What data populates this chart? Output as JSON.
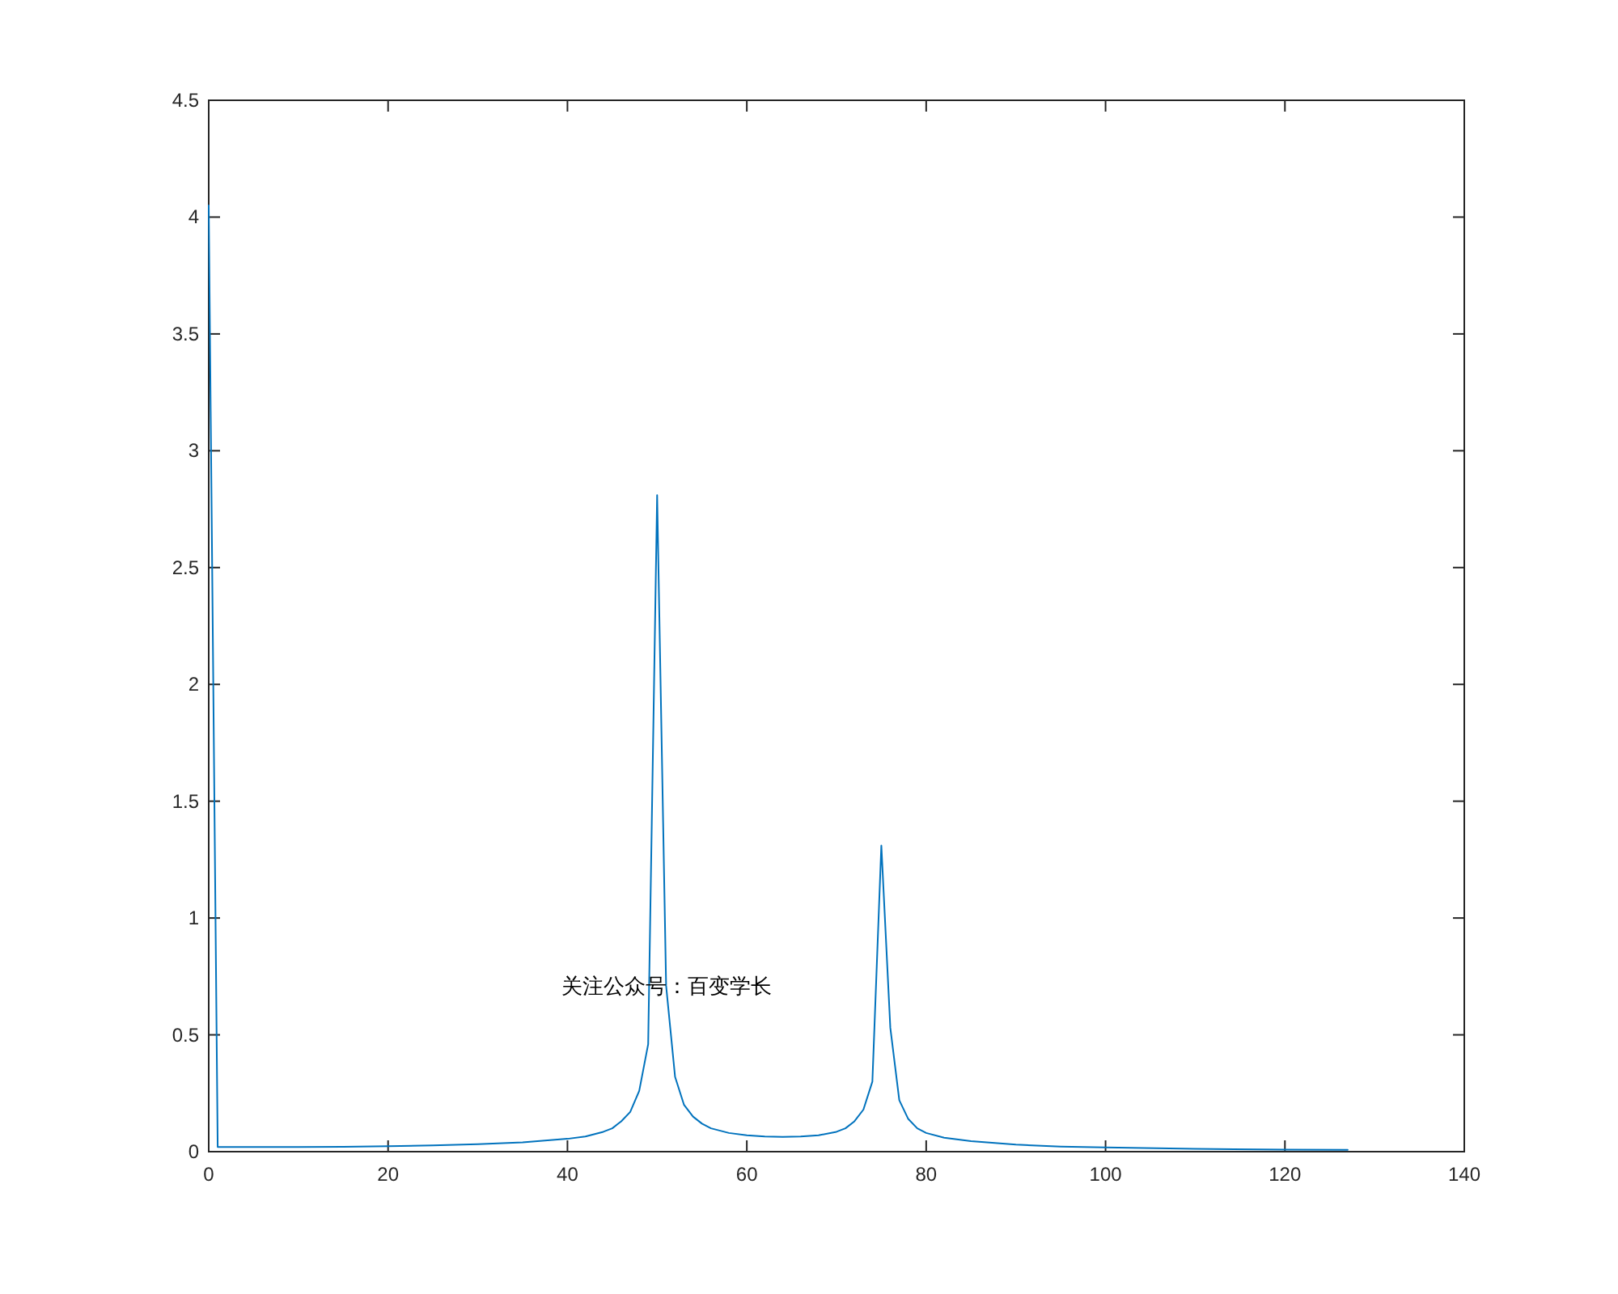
{
  "chart_data": {
    "type": "line",
    "x": [
      0,
      1,
      5,
      10,
      15,
      20,
      25,
      30,
      35,
      40,
      42,
      44,
      45,
      46,
      47,
      48,
      49,
      50,
      51,
      52,
      53,
      54,
      55,
      56,
      58,
      60,
      62,
      64,
      66,
      68,
      70,
      71,
      72,
      73,
      74,
      75,
      76,
      77,
      78,
      79,
      80,
      82,
      85,
      90,
      95,
      100,
      110,
      120,
      127
    ],
    "series": [
      {
        "color": "#0072bd",
        "values": [
          4.05,
          0.02,
          0.02,
          0.02,
          0.021,
          0.023,
          0.027,
          0.032,
          0.04,
          0.055,
          0.065,
          0.085,
          0.1,
          0.13,
          0.17,
          0.26,
          0.46,
          2.81,
          0.71,
          0.32,
          0.2,
          0.15,
          0.12,
          0.1,
          0.08,
          0.07,
          0.065,
          0.063,
          0.065,
          0.07,
          0.085,
          0.1,
          0.13,
          0.18,
          0.3,
          1.31,
          0.53,
          0.22,
          0.14,
          0.1,
          0.08,
          0.06,
          0.045,
          0.03,
          0.022,
          0.018,
          0.012,
          0.009,
          0.008
        ]
      }
    ],
    "xlim": [
      0,
      140
    ],
    "xticks": [
      0,
      20,
      40,
      60,
      80,
      100,
      120,
      140
    ],
    "ylim": [
      0,
      4.5
    ],
    "yticks": [
      0,
      0.5,
      1,
      1.5,
      2,
      2.5,
      3,
      3.5,
      4,
      4.5
    ],
    "annotations": [
      "关注公众号：百变学长"
    ],
    "grid": false,
    "marker": "none",
    "line_style": "solid"
  }
}
